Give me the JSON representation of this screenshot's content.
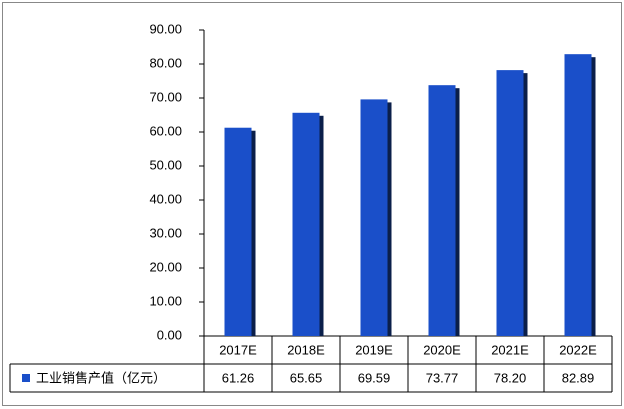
{
  "chart_data": {
    "type": "bar",
    "categories": [
      "2017E",
      "2018E",
      "2019E",
      "2020E",
      "2021E",
      "2022E"
    ],
    "series": [
      {
        "name": "工业销售产值（亿元）",
        "color": "#1a4fc9",
        "values": [
          61.26,
          65.65,
          69.59,
          73.77,
          78.2,
          82.89
        ],
        "value_labels": [
          "61.26",
          "65.65",
          "69.59",
          "73.77",
          "78.20",
          "82.89"
        ]
      }
    ],
    "ylim": [
      0,
      90
    ],
    "yticks": [
      {
        "value": 0,
        "label": "0.00"
      },
      {
        "value": 10,
        "label": "10.00"
      },
      {
        "value": 20,
        "label": "20.00"
      },
      {
        "value": 30,
        "label": "30.00"
      },
      {
        "value": 40,
        "label": "40.00"
      },
      {
        "value": 50,
        "label": "50.00"
      },
      {
        "value": 60,
        "label": "60.00"
      },
      {
        "value": 70,
        "label": "70.00"
      },
      {
        "value": 80,
        "label": "80.00"
      },
      {
        "value": 90,
        "label": "90.00"
      }
    ],
    "grid": false
  }
}
